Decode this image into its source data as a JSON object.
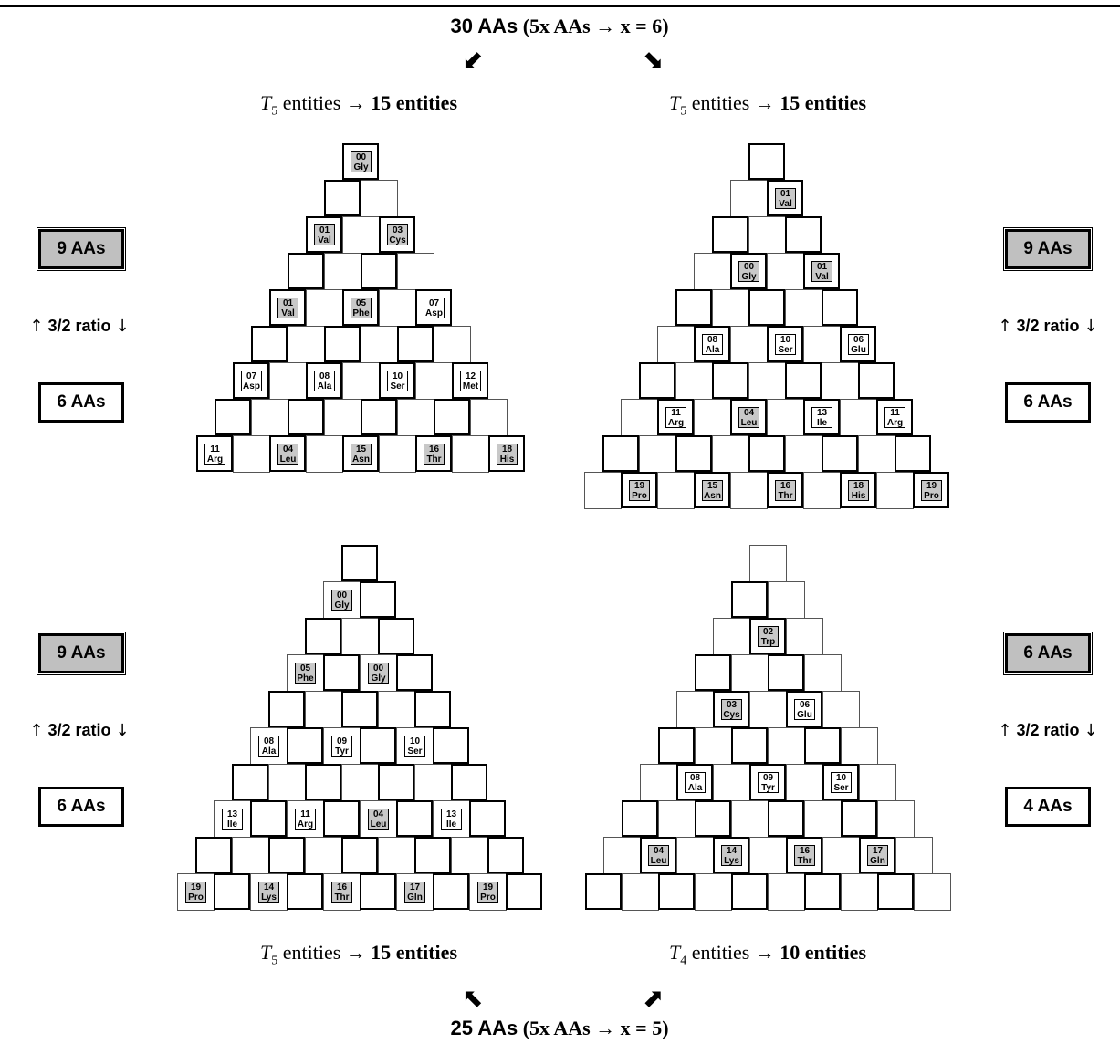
{
  "top_caption": {
    "main": "30 AAs",
    "paren": "(5x AAs → x = 6)"
  },
  "bottom_caption": {
    "main": "25 AAs",
    "paren": "(5x AAs → x = 5)"
  },
  "arrows": {
    "top_left": "⬋",
    "top_right": "⬊",
    "bottom_left": "⬉",
    "bottom_right": "⬈"
  },
  "panels": [
    {
      "id": "top-left",
      "heading": {
        "var": "T",
        "sub": "5",
        "text": " entities → ",
        "bold": "15 entities"
      },
      "rows": 9,
      "pattern": "left",
      "labels": [
        {
          "row": 0,
          "col": 0,
          "num": "00",
          "name": "Gly",
          "shade": "gray"
        },
        {
          "row": 2,
          "col": 0,
          "num": "01",
          "name": "Val",
          "shade": "gray"
        },
        {
          "row": 2,
          "col": 2,
          "num": "03",
          "name": "Cys",
          "shade": "gray"
        },
        {
          "row": 4,
          "col": 0,
          "num": "01",
          "name": "Val",
          "shade": "gray"
        },
        {
          "row": 4,
          "col": 2,
          "num": "05",
          "name": "Phe",
          "shade": "gray"
        },
        {
          "row": 4,
          "col": 4,
          "num": "07",
          "name": "Asp",
          "shade": "white"
        },
        {
          "row": 6,
          "col": 0,
          "num": "07",
          "name": "Asp",
          "shade": "white"
        },
        {
          "row": 6,
          "col": 2,
          "num": "08",
          "name": "Ala",
          "shade": "white"
        },
        {
          "row": 6,
          "col": 4,
          "num": "10",
          "name": "Ser",
          "shade": "white"
        },
        {
          "row": 6,
          "col": 6,
          "num": "12",
          "name": "Met",
          "shade": "white"
        },
        {
          "row": 8,
          "col": 0,
          "num": "11",
          "name": "Arg",
          "shade": "white"
        },
        {
          "row": 8,
          "col": 2,
          "num": "04",
          "name": "Leu",
          "shade": "gray"
        },
        {
          "row": 8,
          "col": 4,
          "num": "15",
          "name": "Asn",
          "shade": "gray"
        },
        {
          "row": 8,
          "col": 6,
          "num": "16",
          "name": "Thr",
          "shade": "gray"
        },
        {
          "row": 8,
          "col": 8,
          "num": "18",
          "name": "His",
          "shade": "gray"
        }
      ]
    },
    {
      "id": "top-right",
      "heading": {
        "var": "T",
        "sub": "5",
        "text": " entities → ",
        "bold": "15 entities"
      },
      "rows": 10,
      "pattern": "top",
      "labels": [
        {
          "row": 1,
          "col": 1,
          "num": "01",
          "name": "Val",
          "shade": "gray"
        },
        {
          "row": 3,
          "col": 1,
          "num": "00",
          "name": "Gly",
          "shade": "gray"
        },
        {
          "row": 3,
          "col": 3,
          "num": "01",
          "name": "Val",
          "shade": "gray"
        },
        {
          "row": 5,
          "col": 1,
          "num": "08",
          "name": "Ala",
          "shade": "white"
        },
        {
          "row": 5,
          "col": 3,
          "num": "10",
          "name": "Ser",
          "shade": "white"
        },
        {
          "row": 5,
          "col": 5,
          "num": "06",
          "name": "Glu",
          "shade": "white"
        },
        {
          "row": 7,
          "col": 1,
          "num": "11",
          "name": "Arg",
          "shade": "white"
        },
        {
          "row": 7,
          "col": 3,
          "num": "04",
          "name": "Leu",
          "shade": "gray"
        },
        {
          "row": 7,
          "col": 5,
          "num": "13",
          "name": "Ile",
          "shade": "white"
        },
        {
          "row": 7,
          "col": 7,
          "num": "11",
          "name": "Arg",
          "shade": "white"
        },
        {
          "row": 9,
          "col": 1,
          "num": "19",
          "name": "Pro",
          "shade": "gray"
        },
        {
          "row": 9,
          "col": 3,
          "num": "15",
          "name": "Asn",
          "shade": "gray"
        },
        {
          "row": 9,
          "col": 5,
          "num": "16",
          "name": "Thr",
          "shade": "gray"
        },
        {
          "row": 9,
          "col": 7,
          "num": "18",
          "name": "His",
          "shade": "gray"
        },
        {
          "row": 9,
          "col": 9,
          "num": "19",
          "name": "Pro",
          "shade": "gray"
        }
      ]
    },
    {
      "id": "bottom-left",
      "heading": {
        "var": "T",
        "sub": "5",
        "text": " entities → ",
        "bold": "15 entities"
      },
      "rows": 10,
      "pattern": "top",
      "labels": [
        {
          "row": 1,
          "col": 0,
          "num": "00",
          "name": "Gly",
          "shade": "gray"
        },
        {
          "row": 3,
          "col": 0,
          "num": "05",
          "name": "Phe",
          "shade": "gray"
        },
        {
          "row": 3,
          "col": 2,
          "num": "00",
          "name": "Gly",
          "shade": "gray"
        },
        {
          "row": 5,
          "col": 0,
          "num": "08",
          "name": "Ala",
          "shade": "white"
        },
        {
          "row": 5,
          "col": 2,
          "num": "09",
          "name": "Tyr",
          "shade": "white"
        },
        {
          "row": 5,
          "col": 4,
          "num": "10",
          "name": "Ser",
          "shade": "white"
        },
        {
          "row": 7,
          "col": 0,
          "num": "13",
          "name": "Ile",
          "shade": "white"
        },
        {
          "row": 7,
          "col": 2,
          "num": "11",
          "name": "Arg",
          "shade": "white"
        },
        {
          "row": 7,
          "col": 4,
          "num": "04",
          "name": "Leu",
          "shade": "gray"
        },
        {
          "row": 7,
          "col": 6,
          "num": "13",
          "name": "Ile",
          "shade": "white"
        },
        {
          "row": 9,
          "col": 0,
          "num": "19",
          "name": "Pro",
          "shade": "gray"
        },
        {
          "row": 9,
          "col": 2,
          "num": "14",
          "name": "Lys",
          "shade": "gray"
        },
        {
          "row": 9,
          "col": 4,
          "num": "16",
          "name": "Thr",
          "shade": "gray"
        },
        {
          "row": 9,
          "col": 6,
          "num": "17",
          "name": "Gln",
          "shade": "gray"
        },
        {
          "row": 9,
          "col": 8,
          "num": "19",
          "name": "Pro",
          "shade": "gray"
        }
      ]
    },
    {
      "id": "bottom-right",
      "heading": {
        "var": "T",
        "sub": "4",
        "text": " entities → ",
        "bold": "10 entities"
      },
      "rows": 10,
      "pattern": "right",
      "labels": [
        {
          "row": 2,
          "col": 1,
          "num": "02",
          "name": "Trp",
          "shade": "gray"
        },
        {
          "row": 4,
          "col": 1,
          "num": "03",
          "name": "Cys",
          "shade": "gray"
        },
        {
          "row": 4,
          "col": 3,
          "num": "06",
          "name": "Glu",
          "shade": "white"
        },
        {
          "row": 6,
          "col": 1,
          "num": "08",
          "name": "Ala",
          "shade": "white"
        },
        {
          "row": 6,
          "col": 3,
          "num": "09",
          "name": "Tyr",
          "shade": "white"
        },
        {
          "row": 6,
          "col": 5,
          "num": "10",
          "name": "Ser",
          "shade": "white"
        },
        {
          "row": 8,
          "col": 1,
          "num": "04",
          "name": "Leu",
          "shade": "gray"
        },
        {
          "row": 8,
          "col": 3,
          "num": "14",
          "name": "Lys",
          "shade": "gray"
        },
        {
          "row": 8,
          "col": 5,
          "num": "16",
          "name": "Thr",
          "shade": "gray"
        },
        {
          "row": 8,
          "col": 7,
          "num": "17",
          "name": "Gln",
          "shade": "gray"
        }
      ]
    }
  ],
  "side_groups": [
    {
      "id": "left-top",
      "upper": "9 AAs",
      "ratio": "3/2 ratio",
      "arrow_up": "↑",
      "arrow_down": "↓",
      "lower": "6 AAs"
    },
    {
      "id": "right-top",
      "upper": "9 AAs",
      "ratio": "3/2 ratio",
      "arrow_up": "↑",
      "arrow_down": "↓",
      "lower": "6 AAs"
    },
    {
      "id": "left-bottom",
      "upper": "9 AAs",
      "ratio": "3/2 ratio",
      "arrow_up": "↑",
      "arrow_down": "↓",
      "lower": "6 AAs"
    },
    {
      "id": "right-bottom",
      "upper": "6 AAs",
      "ratio": "3/2 ratio",
      "arrow_up": "↑",
      "arrow_down": "↓",
      "lower": "4 AAs"
    }
  ]
}
